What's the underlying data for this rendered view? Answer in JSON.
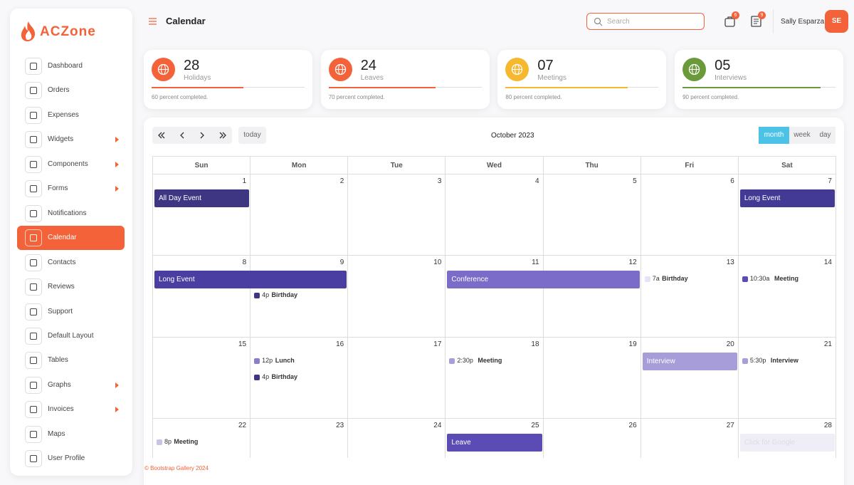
{
  "brand": "ACZone",
  "sidebar": {
    "items": [
      {
        "label": "Dashboard"
      },
      {
        "label": "Orders"
      },
      {
        "label": "Expenses"
      },
      {
        "label": "Widgets",
        "submenu": true
      },
      {
        "label": "Components",
        "submenu": true
      },
      {
        "label": "Forms",
        "submenu": true
      },
      {
        "label": "Notifications"
      },
      {
        "label": "Calendar",
        "active": true
      },
      {
        "label": "Contacts"
      },
      {
        "label": "Reviews"
      },
      {
        "label": "Support"
      },
      {
        "label": "Default Layout"
      },
      {
        "label": "Tables"
      },
      {
        "label": "Graphs",
        "submenu": true
      },
      {
        "label": "Invoices",
        "submenu": true
      },
      {
        "label": "Maps"
      },
      {
        "label": "User Profile"
      }
    ]
  },
  "header": {
    "title": "Calendar",
    "search_placeholder": "Search",
    "badges": [
      6,
      9
    ],
    "user": {
      "name": "Sally Esparza",
      "initials": "SE"
    }
  },
  "stats": [
    {
      "value": "28",
      "label": "Holidays",
      "progress": 60,
      "note": "60 percent completed.",
      "color": "#f4623a"
    },
    {
      "value": "24",
      "label": "Leaves",
      "progress": 70,
      "note": "70 percent completed.",
      "color": "#f4623a"
    },
    {
      "value": "07",
      "label": "Meetings",
      "progress": 80,
      "note": "80 percent completed.",
      "color": "#f5b82e"
    },
    {
      "value": "05",
      "label": "Interviews",
      "progress": 90,
      "note": "90 percent completed.",
      "color": "#6a9a3a"
    }
  ],
  "calendar": {
    "today": "today",
    "title": "October 2023",
    "views": [
      {
        "label": "month",
        "active": true
      },
      {
        "label": "week"
      },
      {
        "label": "day"
      }
    ],
    "weekdays": [
      "Sun",
      "Mon",
      "Tue",
      "Wed",
      "Thu",
      "Fri",
      "Sat"
    ],
    "weeks": [
      [
        {
          "date": 1,
          "events": [
            {
              "title": "All Day Event",
              "days": 1,
              "color": "#3f3683"
            }
          ]
        },
        {
          "date": 2
        },
        {
          "date": 3
        },
        {
          "date": 4
        },
        {
          "date": 5
        },
        {
          "date": 6
        },
        {
          "date": 7,
          "events": [
            {
              "title": "Long Event",
              "days": 1,
              "color": "#433a96"
            }
          ]
        }
      ],
      [
        {
          "date": 8,
          "events": [
            {
              "title": "Long Event",
              "days": 2,
              "color": "#4b3ea3"
            }
          ]
        },
        {
          "date": 9,
          "events": [
            {
              "time": "4p",
              "title": "Birthday",
              "color": "#3f3683"
            }
          ]
        },
        {
          "date": 10
        },
        {
          "date": 11,
          "events": [
            {
              "title": "Conference",
              "days": 2,
              "color": "#7a6cc8"
            }
          ]
        },
        {
          "date": 12
        },
        {
          "date": 13,
          "events": [
            {
              "time": "7a",
              "title": "Birthday",
              "color": "#e6e3f3"
            }
          ]
        },
        {
          "date": 14,
          "events": [
            {
              "time": "10:30a",
              "title": "Meeting",
              "color": "#5a4bb5"
            }
          ]
        }
      ],
      [
        {
          "date": 15
        },
        {
          "date": 16,
          "events": [
            {
              "time": "12p",
              "title": "Lunch",
              "color": "#8b7ecf"
            },
            {
              "time": "4p",
              "title": "Birthday",
              "color": "#3f3683"
            }
          ]
        },
        {
          "date": 17
        },
        {
          "date": 18,
          "events": [
            {
              "time": "2:30p",
              "title": "Meeting",
              "color": "#a99ed8"
            }
          ]
        },
        {
          "date": 19
        },
        {
          "date": 20,
          "events": [
            {
              "title": "Interview",
              "days": 1,
              "color": "#a79dd8"
            }
          ]
        },
        {
          "date": 21,
          "events": [
            {
              "time": "5:30p",
              "title": "Interview",
              "color": "#a99ed8"
            }
          ]
        }
      ],
      [
        {
          "date": 22,
          "events": [
            {
              "time": "8p",
              "title": "Meeting",
              "color": "#c9c3e6"
            }
          ]
        },
        {
          "date": 23
        },
        {
          "date": 24
        },
        {
          "date": 25,
          "events": [
            {
              "title": "Leave",
              "days": 1,
              "color": "#5a4bb5"
            }
          ]
        },
        {
          "date": 26
        },
        {
          "date": 27
        },
        {
          "date": 28,
          "events": [
            {
              "title": "Click for Google",
              "days": 1,
              "color": "#efeef6",
              "text_color": "#dcdce4"
            }
          ]
        }
      ]
    ]
  },
  "footer": "© Bootstrap Gallery 2024"
}
